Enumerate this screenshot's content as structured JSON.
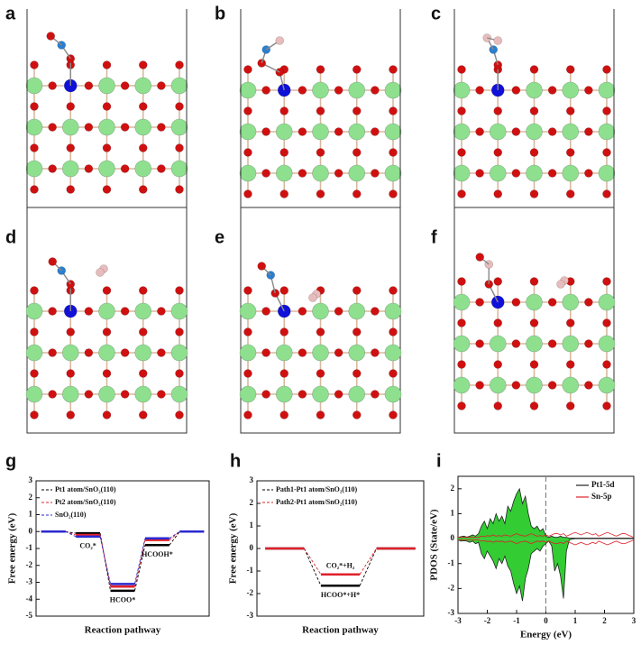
{
  "panels": [
    "a",
    "b",
    "c",
    "d",
    "e",
    "f"
  ],
  "chart_data": [
    {
      "type": "energy",
      "label": "g",
      "xlabel": "Reaction pathway",
      "ylabel": "Free energy (eV)",
      "categories": [
        null,
        "CO₂*",
        "HCOO*",
        "HCOOH*",
        null
      ],
      "series": [
        {
          "name": "Pt1 atom/SnO₂(110)",
          "color": "#000000",
          "values": [
            0,
            -0.1,
            -3.5,
            -0.8,
            0
          ]
        },
        {
          "name": "Pt2 atom/SnO₂(110)",
          "color": "#e0202a",
          "values": [
            0,
            -0.2,
            -3.25,
            -0.5,
            0
          ]
        },
        {
          "name": "SnO₂(110)",
          "color": "#2a2ad0",
          "values": [
            0,
            -0.3,
            -3.1,
            -0.4,
            0
          ]
        }
      ],
      "ylim": [
        -5,
        3
      ],
      "yticks": [
        -5,
        -4,
        -3,
        -2,
        -1,
        0,
        1,
        2,
        3
      ]
    },
    {
      "type": "energy",
      "label": "h",
      "xlabel": "Reaction pathway",
      "ylabel": "Free energy (eV)",
      "categories": [
        null,
        null,
        null
      ],
      "series": [
        {
          "name": "Path1-Pt1 atom/SnO₂(110)",
          "color": "#000000",
          "values": [
            0,
            -1.65,
            0
          ],
          "state_label": "HCOO*+H*"
        },
        {
          "name": "Path2-Pt1 atom/SnO₂(110)",
          "color": "#e0202a",
          "values": [
            0,
            -1.15,
            0
          ],
          "state_label": "CO₂*+H₂"
        }
      ],
      "ylim": [
        -3,
        3
      ],
      "yticks": [
        -3,
        -2,
        -1,
        0,
        1,
        2,
        3
      ]
    },
    {
      "type": "pdos",
      "label": "i",
      "xlabel": "Energy (eV)",
      "ylabel": "PDOS (State/eV)",
      "x": [
        -3,
        -2.9,
        -2.8,
        -2.7,
        -2.6,
        -2.5,
        -2.4,
        -2.3,
        -2.2,
        -2.1,
        -2,
        -1.9,
        -1.8,
        -1.7,
        -1.6,
        -1.5,
        -1.4,
        -1.3,
        -1.2,
        -1.1,
        -1,
        -0.9,
        -0.8,
        -0.7,
        -0.6,
        -0.5,
        -0.4,
        -0.3,
        -0.2,
        -0.1,
        0,
        0.1,
        0.2,
        0.3,
        0.4,
        0.5,
        0.6,
        0.7,
        0.8,
        0.9,
        1,
        1.1,
        1.2,
        1.3,
        1.4,
        1.5,
        1.6,
        1.7,
        1.8,
        1.9,
        2,
        2.1,
        2.2,
        2.3,
        2.4,
        2.5,
        2.6,
        2.7,
        2.8,
        2.9,
        3
      ],
      "series": [
        {
          "name": "Pt1-5d",
          "color": "#222222",
          "fill": "#33cc33",
          "values": [
            0.05,
            0.08,
            0.1,
            0.06,
            0.1,
            0.15,
            0.1,
            0.2,
            0.5,
            0.7,
            0.4,
            0.8,
            0.6,
            1.0,
            0.7,
            0.9,
            0.6,
            1.3,
            1.1,
            1.5,
            1.8,
            2.0,
            1.4,
            1.7,
            1.0,
            0.5,
            0.4,
            0.5,
            0.3,
            0.4,
            0.1,
            0.05,
            0.1,
            0.05,
            0.05,
            0.1,
            0.05,
            0.05,
            0.02,
            0.02,
            0.02,
            0.02,
            0.02,
            0.02,
            0.02,
            0.02,
            0.02,
            0.02,
            0.02,
            0.02,
            0.02,
            0.02,
            0.02,
            0.02,
            0.02,
            0.02,
            0.02,
            0.02,
            0.02,
            0.02,
            0.02
          ],
          "values_down": [
            -0.05,
            -0.1,
            -0.08,
            -0.1,
            -0.15,
            -0.1,
            -0.2,
            -0.15,
            -0.6,
            -0.8,
            -0.5,
            -0.7,
            -0.9,
            -1.2,
            -0.8,
            -1.0,
            -0.7,
            -1.1,
            -1.3,
            -1.8,
            -2.2,
            -1.9,
            -2.5,
            -1.6,
            -1.2,
            -0.6,
            -0.5,
            -0.4,
            -0.5,
            -0.3,
            -0.2,
            -0.1,
            -0.3,
            -1.3,
            -1.0,
            -1.5,
            -2.4,
            -0.5,
            -0.05,
            -0.02,
            0,
            0,
            0,
            0,
            0,
            0,
            0,
            0,
            0,
            0,
            0,
            0,
            0,
            0,
            0,
            0,
            0,
            0,
            0,
            0,
            0
          ]
        },
        {
          "name": "Sn-5p",
          "color": "#e0202a",
          "values": [
            0.05,
            0.05,
            0.05,
            0.05,
            0.05,
            0.05,
            0.05,
            0.05,
            0.1,
            0.08,
            0.12,
            0.1,
            0.15,
            0.1,
            0.12,
            0.1,
            0.15,
            0.12,
            0.1,
            0.15,
            0.2,
            0.15,
            0.12,
            0.1,
            0.15,
            0.2,
            0.15,
            0.1,
            0.12,
            0.1,
            0.15,
            0.1,
            0.15,
            0.2,
            0.2,
            0.15,
            0.2,
            0.1,
            0.15,
            0.2,
            0.25,
            0.2,
            0.15,
            0.2,
            0.25,
            0.2,
            0.15,
            0.2,
            0.1,
            0.15,
            0.2,
            0.25,
            0.2,
            0.15,
            0.1,
            0.15,
            0.2,
            0.2,
            0.15,
            0.1,
            0.05
          ],
          "values_down": [
            -0.05,
            -0.05,
            -0.05,
            -0.05,
            -0.05,
            -0.05,
            -0.05,
            -0.05,
            -0.1,
            -0.08,
            -0.12,
            -0.1,
            -0.15,
            -0.1,
            -0.12,
            -0.1,
            -0.15,
            -0.12,
            -0.1,
            -0.15,
            -0.2,
            -0.15,
            -0.12,
            -0.1,
            -0.15,
            -0.2,
            -0.15,
            -0.1,
            -0.12,
            -0.1,
            -0.15,
            -0.1,
            -0.15,
            -0.2,
            -0.2,
            -0.15,
            -0.2,
            -0.1,
            -0.15,
            -0.2,
            -0.25,
            -0.2,
            -0.15,
            -0.2,
            -0.25,
            -0.2,
            -0.15,
            -0.2,
            -0.1,
            -0.15,
            -0.2,
            -0.25,
            -0.2,
            -0.15,
            -0.1,
            -0.15,
            -0.2,
            -0.2,
            -0.15,
            -0.1,
            -0.05
          ]
        }
      ],
      "xlim": [
        -3,
        3
      ],
      "xticks": [
        -3,
        -2,
        -1,
        0,
        1,
        2,
        3
      ],
      "ylim": [
        -3,
        2.5
      ],
      "yticks": [
        -3,
        -2,
        -1,
        0,
        1,
        2
      ],
      "legend": "upper right"
    }
  ]
}
